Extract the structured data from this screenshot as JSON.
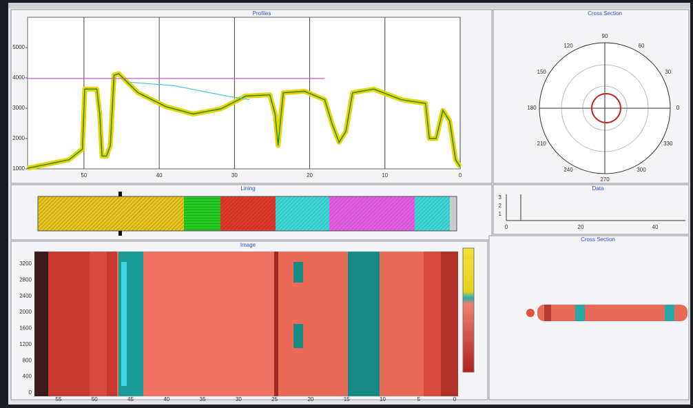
{
  "panels": {
    "profiles": "Profiles",
    "lining": "Lining",
    "image": "Image",
    "polar": "Cross Section",
    "data": "Data",
    "cross": "Cross Section"
  },
  "chart_data": {
    "type": "line",
    "xlim": [
      57.5,
      0
    ],
    "ylim": [
      1000,
      6000
    ],
    "xticks": [
      50,
      40,
      30,
      20,
      10,
      0
    ],
    "yticks": [
      1000,
      2000,
      3000,
      4000,
      5000
    ],
    "grid": true,
    "series": [
      {
        "color": "#e8d400",
        "x": [
          57.5,
          52.0,
          50.2,
          49.9,
          48.3,
          47.9,
          47.6,
          47.0,
          46.5,
          46.0,
          45.4,
          42.8,
          39.1,
          35.5,
          31.8,
          28.5,
          25.3,
          24.6,
          24.2,
          23.8,
          23.5,
          20.7,
          18.0,
          17.0,
          16.1,
          15.2,
          14.3,
          11.5,
          7.8,
          4.6,
          4.1,
          3.2,
          2.3,
          1.4,
          0.6,
          0.0
        ],
        "values": [
          1020,
          1300,
          1650,
          3630,
          3630,
          2810,
          1420,
          1420,
          1770,
          4090,
          4140,
          3510,
          3050,
          2810,
          2980,
          3400,
          3440,
          2810,
          1770,
          2810,
          3510,
          3560,
          3280,
          2470,
          1880,
          2230,
          3510,
          3630,
          3280,
          3160,
          2000,
          2000,
          2930,
          2580,
          1300,
          1070
        ]
      },
      {
        "color": "#49c6d0",
        "x": [
          44,
          38,
          31,
          28
        ],
        "values": [
          3860,
          3740,
          3400,
          3280
        ]
      },
      {
        "color": "#d455d4",
        "x": [
          57.5,
          18
        ],
        "values": [
          3980,
          3980
        ]
      }
    ]
  },
  "polar_labels": [
    "90",
    "60",
    "30",
    "0",
    "330",
    "300",
    "270",
    "240",
    "210",
    "180",
    "150",
    "120"
  ],
  "data_panel": {
    "y_labels": [
      "3",
      "2",
      "1"
    ],
    "x_labels": [
      "0",
      "20",
      "40"
    ]
  },
  "image_axes": {
    "x_labels": [
      "55",
      "50",
      "45",
      "40",
      "35",
      "30",
      "25",
      "20",
      "15",
      "10",
      "5",
      "0"
    ],
    "y_labels": [
      "3200",
      "2800",
      "2400",
      "2000",
      "1600",
      "1200",
      "800",
      "400",
      "0"
    ]
  }
}
